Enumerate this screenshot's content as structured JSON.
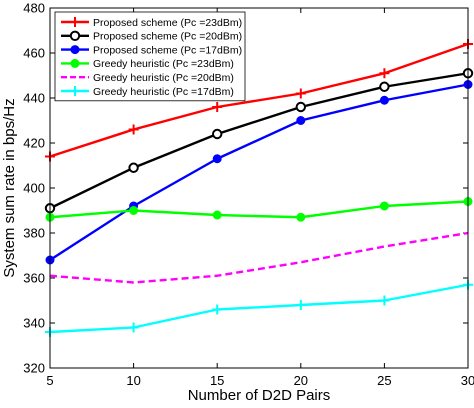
{
  "chart_data": {
    "type": "line",
    "xlabel": "Number of D2D Pairs",
    "ylabel": "System sum rate in bps/Hz",
    "xlim": [
      5,
      30
    ],
    "ylim": [
      320,
      480
    ],
    "xticks": [
      5,
      10,
      15,
      20,
      25,
      30
    ],
    "yticks": [
      320,
      340,
      360,
      380,
      400,
      420,
      440,
      460,
      480
    ],
    "grid": false,
    "legend_position": "top-left",
    "x": [
      5,
      10,
      15,
      20,
      25,
      30
    ],
    "series": [
      {
        "name": "Proposed scheme (Pc =23dBm)",
        "color": "#ff0000",
        "marker": "plus",
        "dash": "solid",
        "values": [
          414,
          426,
          436,
          442,
          451,
          464
        ]
      },
      {
        "name": "Proposed scheme (Pc =20dBm)",
        "color": "#000000",
        "marker": "circle",
        "dash": "solid",
        "values": [
          391,
          409,
          424,
          436,
          445,
          451
        ]
      },
      {
        "name": "Proposed scheme (Pc =17dBm)",
        "color": "#0000ff",
        "marker": "dot",
        "dash": "solid",
        "values": [
          368,
          392,
          413,
          430,
          439,
          446
        ]
      },
      {
        "name": "Greedy heuristic (Pc =23dBm)",
        "color": "#00ff00",
        "marker": "dot",
        "dash": "solid",
        "values": [
          387,
          390,
          388,
          387,
          392,
          394
        ]
      },
      {
        "name": "Greedy heuristic (Pc =20dBm)",
        "color": "#ff00ff",
        "marker": "none",
        "dash": "dashed",
        "values": [
          361,
          358,
          361,
          367,
          374,
          380
        ]
      },
      {
        "name": "Greedy heuristic (Pc =17dBm)",
        "color": "#00ffff",
        "marker": "plus",
        "dash": "solid",
        "values": [
          336,
          338,
          346,
          348,
          350,
          357
        ]
      }
    ]
  }
}
